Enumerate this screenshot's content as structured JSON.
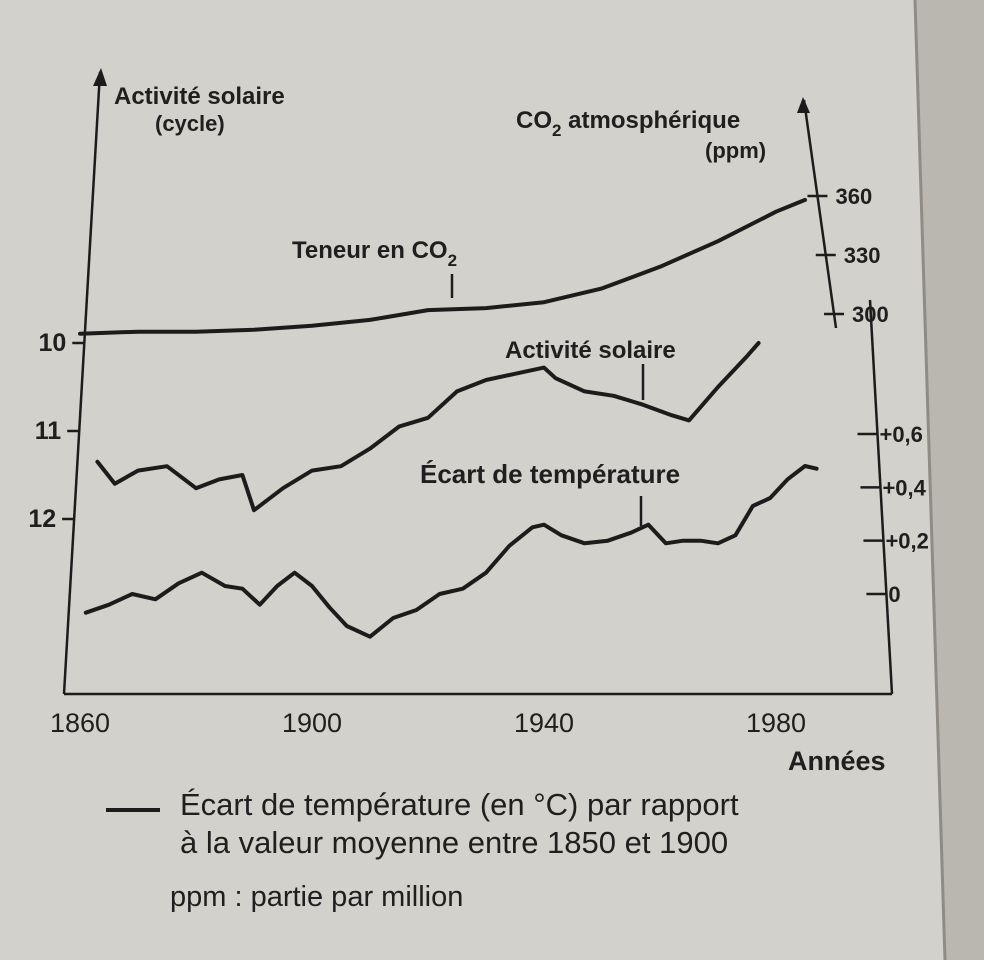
{
  "chart_data": {
    "type": "line",
    "xlabel": "Années",
    "x_ticks": [
      1860,
      1900,
      1940,
      1980
    ],
    "xlim": [
      1858,
      1997
    ],
    "left_axis": {
      "title_line1": "Activité solaire",
      "title_line2": "(cycle)",
      "ticks": [
        10,
        11,
        12
      ],
      "inverted": true
    },
    "co2_axis": {
      "title_html_parts": [
        "CO",
        "2",
        " atmosphérique"
      ],
      "title_line2": "(ppm)",
      "ticks": [
        300,
        330,
        360
      ]
    },
    "temp_axis": {
      "ticks": [
        "+0,6",
        "+0,4",
        "+0,2",
        "0"
      ],
      "tick_values": [
        0.6,
        0.4,
        0.2,
        0
      ]
    },
    "series": [
      {
        "name": "Teneur en CO2",
        "label_main": "Teneur en CO",
        "label_sub": "2",
        "axis": "co2",
        "x": [
          1860,
          1870,
          1880,
          1890,
          1900,
          1910,
          1920,
          1930,
          1940,
          1950,
          1960,
          1970,
          1980,
          1985
        ],
        "values": [
          290,
          291,
          291,
          292,
          294,
          297,
          302,
          303,
          306,
          313,
          324,
          337,
          352,
          358
        ]
      },
      {
        "name": "Activité solaire",
        "axis": "solar",
        "x": [
          1863,
          1866,
          1870,
          1875,
          1880,
          1884,
          1888,
          1890,
          1895,
          1900,
          1905,
          1910,
          1915,
          1920,
          1925,
          1930,
          1935,
          1940,
          1942,
          1947,
          1952,
          1957,
          1962,
          1965,
          1970,
          1975,
          1977
        ],
        "values": [
          11.35,
          11.6,
          11.45,
          11.4,
          11.65,
          11.55,
          11.5,
          11.9,
          11.65,
          11.45,
          11.4,
          11.2,
          10.95,
          10.85,
          10.55,
          10.42,
          10.35,
          10.28,
          10.4,
          10.55,
          10.6,
          10.7,
          10.82,
          10.88,
          10.5,
          10.15,
          10.0
        ]
      },
      {
        "name": "Écart de température",
        "axis": "temp",
        "x": [
          1861,
          1865,
          1869,
          1873,
          1877,
          1881,
          1885,
          1888,
          1891,
          1894,
          1897,
          1900,
          1903,
          1906,
          1910,
          1914,
          1918,
          1922,
          1926,
          1930,
          1934,
          1938,
          1940,
          1943,
          1947,
          1951,
          1955,
          1958,
          1961,
          1964,
          1967,
          1970,
          1973,
          1976,
          1979,
          1982,
          1985,
          1987
        ],
        "values": [
          -0.07,
          -0.04,
          0.0,
          -0.02,
          0.04,
          0.08,
          0.03,
          0.02,
          -0.04,
          0.03,
          0.08,
          0.03,
          -0.05,
          -0.12,
          -0.16,
          -0.09,
          -0.06,
          0.0,
          0.02,
          0.08,
          0.18,
          0.25,
          0.26,
          0.22,
          0.19,
          0.2,
          0.23,
          0.26,
          0.19,
          0.2,
          0.2,
          0.19,
          0.22,
          0.33,
          0.36,
          0.43,
          0.48,
          0.47
        ]
      }
    ],
    "legend": {
      "line1": "Écart de température (en °C) par rapport",
      "line2": "à la valeur moyenne entre 1850 et 1900"
    },
    "footnote": "ppm : partie par million"
  }
}
